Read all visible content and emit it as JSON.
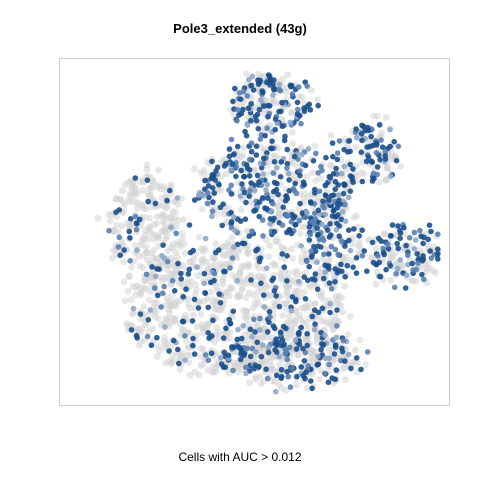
{
  "chart_data": {
    "type": "scatter",
    "title": "Pole3_extended (43g)",
    "caption": "Cells with AUC > 0.012",
    "xlabel": "",
    "ylabel": "",
    "grid": false,
    "legend": "none",
    "xlim": [
      0,
      100
    ],
    "ylim": [
      0,
      100
    ],
    "colors": {
      "background_cells": "#d3d3d3",
      "high_auc": "#1b4f8c",
      "mid_auc": "#5a7fb0",
      "low_auc": "#8fa6c7",
      "frame": "#cccccc"
    },
    "clusters": [
      {
        "cx": 45,
        "cy": 72,
        "rx": 28,
        "ry": 20,
        "n": 900,
        "blue_frac": 0.18
      },
      {
        "cx": 60,
        "cy": 86,
        "rx": 18,
        "ry": 8,
        "n": 300,
        "blue_frac": 0.45
      },
      {
        "cx": 22,
        "cy": 48,
        "rx": 10,
        "ry": 15,
        "n": 250,
        "blue_frac": 0.15
      },
      {
        "cx": 55,
        "cy": 38,
        "rx": 20,
        "ry": 14,
        "n": 450,
        "blue_frac": 0.55
      },
      {
        "cx": 54,
        "cy": 13,
        "rx": 10,
        "ry": 9,
        "n": 200,
        "blue_frac": 0.6
      },
      {
        "cx": 88,
        "cy": 56,
        "rx": 10,
        "ry": 9,
        "n": 160,
        "blue_frac": 0.5
      },
      {
        "cx": 79,
        "cy": 28,
        "rx": 8,
        "ry": 10,
        "n": 140,
        "blue_frac": 0.55
      },
      {
        "cx": 70,
        "cy": 52,
        "rx": 7,
        "ry": 14,
        "n": 150,
        "blue_frac": 0.6
      }
    ]
  }
}
